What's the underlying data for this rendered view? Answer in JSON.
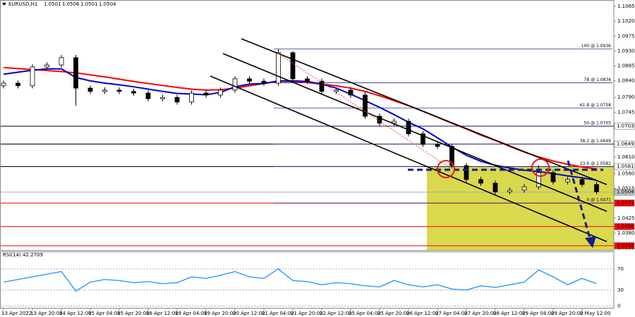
{
  "chart_data": [
    {
      "type": "candlestick",
      "symbol": "EURUSD,H1",
      "quote": [
        1.0501,
        1.0506,
        1.0501,
        1.0504
      ],
      "categories": [
        "13 Apr 2022",
        null,
        "13 Apr 20:00",
        null,
        "14 Apr 12:00",
        null,
        "15 Apr 04:00",
        null,
        "15 Apr 20:00",
        null,
        "18 Apr 12:00",
        null,
        "19 Apr 04:00",
        null,
        "19 Apr 20:00",
        null,
        "20 Apr 12:00",
        null,
        "21 Apr 04:00",
        null,
        "21 Apr 20:00",
        null,
        "22 Apr 12:00",
        null,
        "25 Apr 04:00",
        null,
        "25 Apr 20:00",
        null,
        "26 Apr 12:00",
        null,
        "27 Apr 04:00",
        null,
        "27 Apr 20:00",
        null,
        "28 Apr 12:00",
        null,
        "29 Apr 04:00",
        null,
        "29 Apr 20:00",
        null,
        "2 May 12:00",
        null
      ],
      "open": [
        1.0825,
        1.0833,
        1.0825,
        1.0882,
        1.0888,
        1.091,
        1.0818,
        1.0808,
        1.0812,
        1.0808,
        1.0803,
        1.0786,
        1.079,
        1.0776,
        1.0803,
        1.0797,
        1.0812,
        1.0846,
        1.0839,
        1.0833,
        1.0925,
        1.0846,
        1.0839,
        1.0808,
        1.0812,
        1.0797,
        1.0733,
        1.0712,
        1.0718,
        1.068,
        1.0648,
        1.0642,
        1.0584,
        1.0542,
        1.0531,
        1.0505,
        1.051,
        1.052,
        1.0563,
        1.0535,
        1.0542,
        1.0527
      ],
      "high": [
        1.0841,
        1.0841,
        1.089,
        1.0896,
        1.0918,
        1.0918,
        1.0826,
        1.082,
        1.082,
        1.0816,
        1.0811,
        1.0798,
        1.0798,
        1.0811,
        1.0811,
        1.082,
        1.0854,
        1.0854,
        1.0847,
        1.0936,
        1.093,
        1.0854,
        1.0847,
        1.082,
        1.082,
        1.0805,
        1.0741,
        1.0726,
        1.0726,
        1.0688,
        1.0656,
        1.065,
        1.0592,
        1.055,
        1.0539,
        1.0518,
        1.0528,
        1.0585,
        1.0571,
        1.055,
        1.055,
        1.0535
      ],
      "low": [
        1.0817,
        1.0817,
        1.0817,
        1.0874,
        1.088,
        1.0765,
        1.08,
        1.08,
        1.08,
        1.0795,
        1.0778,
        1.0778,
        1.0768,
        1.0768,
        1.0789,
        1.0789,
        1.0804,
        1.0831,
        1.0825,
        1.0825,
        1.0838,
        1.0831,
        1.08,
        1.08,
        1.0789,
        1.0725,
        1.0704,
        1.0704,
        1.0672,
        1.064,
        1.0634,
        1.0576,
        1.0534,
        1.0523,
        1.0497,
        1.0497,
        1.0502,
        1.0512,
        1.0527,
        1.0527,
        1.0519,
        1.0497
      ],
      "close": [
        1.0833,
        1.0825,
        1.0882,
        1.0888,
        1.091,
        1.0818,
        1.0808,
        1.0812,
        1.0808,
        1.0803,
        1.0786,
        1.079,
        1.0776,
        1.0803,
        1.0797,
        1.0812,
        1.0846,
        1.0839,
        1.0833,
        1.0925,
        1.0846,
        1.0839,
        1.0808,
        1.0812,
        1.0797,
        1.0733,
        1.0712,
        1.0718,
        1.068,
        1.0648,
        1.0642,
        1.0584,
        1.0542,
        1.0531,
        1.0505,
        1.051,
        1.052,
        1.0563,
        1.0535,
        1.0542,
        1.0527,
        1.0505
      ],
      "up_color": "#ffffff",
      "down_color": "#000000",
      "overlays": [
        {
          "color": "#ff0000",
          "values": [
            1.088,
            1.0877,
            1.0874,
            1.0871,
            1.0868,
            1.0864,
            1.0858,
            1.0852,
            1.0845,
            1.0838,
            1.0832,
            1.0826,
            1.082,
            1.0815,
            1.0812,
            1.0813,
            1.0818,
            1.0825,
            1.0832,
            1.0838,
            1.0838,
            1.0835,
            1.083,
            1.0825,
            1.0818,
            1.0808,
            1.0795,
            1.078,
            1.0765,
            1.0748,
            1.073,
            1.0712,
            1.0695,
            1.0676,
            1.066,
            1.0642,
            1.0625,
            1.061,
            1.0598,
            1.0588,
            1.058,
            1.0574
          ]
        },
        {
          "color": "#0000cd",
          "values": [
            1.086,
            1.0866,
            1.0872,
            1.0876,
            1.0876,
            1.085,
            1.084,
            1.0833,
            1.0828,
            1.0822,
            1.0815,
            1.0808,
            1.0802,
            1.08,
            1.0798,
            1.0805,
            1.0822,
            1.083,
            1.0832,
            1.084,
            1.084,
            1.0838,
            1.083,
            1.0818,
            1.08,
            1.078,
            1.076,
            1.0738,
            1.0715,
            1.0695,
            1.0668,
            1.064,
            1.0615,
            1.0597,
            1.0585,
            1.0577,
            1.057,
            1.0566,
            1.056,
            1.0553,
            1.0547,
            1.054
          ]
        }
      ],
      "ylim": [
        1.0329,
        1.1084
      ],
      "yticks": [
        1.1065,
        {
          "value": 1.102,
          "label": "1.1020"
        },
        1.0975,
        {
          "value": 1.093,
          "label": "1.0930"
        },
        1.0885,
        {
          "value": 1.084,
          "label": "1.0840"
        },
        {
          "value": 1.079,
          "label": "1.0790"
        },
        1.0745,
        {
          "value": 1.061,
          "label": "1.0610"
        },
        {
          "value": 1.056,
          "label": "1.0560"
        },
        1.0515,
        1.0425,
        {
          "value": 1.038,
          "label": "1.0380"
        },
        1.0335
      ],
      "price_markers": [
        {
          "value": 1.0703,
          "color": "#ffffff",
          "line_color": "#000000"
        },
        {
          "value": 1.0649,
          "color": "#ffffff",
          "line_color": "#000000"
        },
        {
          "value": 1.0581,
          "color": "#ffffff",
          "line_color": "#000000"
        },
        {
          "value": 1.0504,
          "color": "#c0c0c0",
          "line_color": "#b0b0b0"
        },
        {
          "value": 1.0471,
          "color": "#ff0000",
          "line_color": "#ff0000"
        },
        {
          "value": 1.04,
          "label": "1.0400",
          "color": "#ff0000",
          "line_color": "#ff0000"
        },
        {
          "value": 1.0342,
          "color": "#ff0000",
          "line_color": "#ff0000"
        }
      ],
      "fib_color": "#2e2e9a",
      "fib_levels": [
        {
          "value": 1.0936,
          "label": "100 @ 1.0936"
        },
        {
          "value": 1.0834,
          "label": "78 @ 1.0834"
        },
        {
          "value": 1.0758,
          "label": "61.8 @ 1.0758"
        },
        {
          "value": 1.0703,
          "label": "50 @ 1.0703"
        },
        {
          "value": 1.0649,
          "label": "38.2 @ 1.0649"
        },
        {
          "value": 1.0581,
          "label": "23.6 @ 1.0581"
        },
        {
          "value": 1.0471,
          "label": "0 @ 1.0471"
        }
      ]
    },
    {
      "type": "line",
      "title": "RSI(14) 42.2709",
      "color": "#1e90ff",
      "values": [
        45,
        50,
        55,
        60,
        65,
        28,
        45,
        50,
        48,
        44,
        46,
        42,
        44,
        55,
        52,
        58,
        65,
        55,
        52,
        70,
        48,
        46,
        40,
        44,
        42,
        38,
        36,
        48,
        40,
        36,
        40,
        32,
        30,
        38,
        35,
        40,
        45,
        68,
        55,
        40,
        52,
        42
      ],
      "ylim": [
        -5,
        103
      ],
      "yticks": [
        70,
        30,
        0
      ]
    }
  ]
}
